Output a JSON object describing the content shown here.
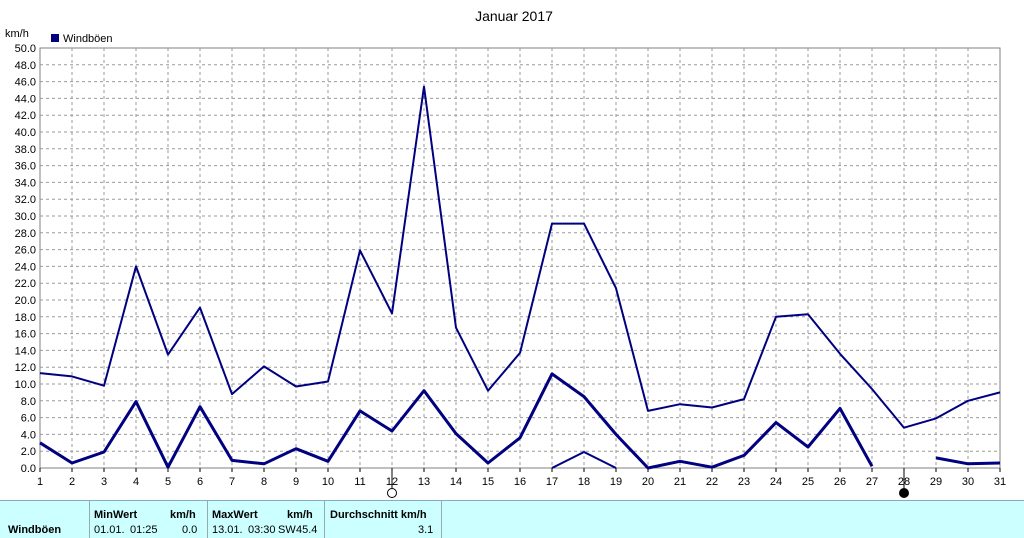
{
  "chart_data": {
    "type": "line",
    "title": "Januar 2017",
    "ylabel": "km/h",
    "legend": {
      "label": "Windböen",
      "placement": "top-left",
      "color": "#000080"
    },
    "ylim": [
      0,
      50
    ],
    "yticks": [
      "0.0",
      "2.0",
      "4.0",
      "6.0",
      "8.0",
      "10.0",
      "12.0",
      "14.0",
      "16.0",
      "18.0",
      "20.0",
      "22.0",
      "24.0",
      "26.0",
      "28.0",
      "30.0",
      "32.0",
      "34.0",
      "36.0",
      "38.0",
      "40.0",
      "42.0",
      "44.0",
      "46.0",
      "48.0",
      "50.0"
    ],
    "x": [
      1,
      2,
      3,
      4,
      5,
      6,
      7,
      8,
      9,
      10,
      11,
      12,
      13,
      14,
      15,
      16,
      17,
      18,
      19,
      20,
      21,
      22,
      23,
      24,
      25,
      26,
      27,
      28,
      29,
      30,
      31
    ],
    "grid": true,
    "series": [
      {
        "role": "max",
        "color": "#000080",
        "values": [
          11.3,
          10.9,
          9.8,
          24.0,
          13.5,
          19.1,
          8.8,
          12.1,
          9.7,
          10.3,
          25.9,
          18.4,
          45.4,
          16.7,
          9.2,
          13.7,
          29.1,
          29.1,
          21.4,
          6.8,
          7.6,
          7.2,
          8.2,
          18.0,
          18.3,
          13.6,
          9.4,
          4.8,
          5.9,
          8.0,
          9.0
        ]
      },
      {
        "role": "avg",
        "color": "#000080",
        "values": [
          3.0,
          0.6,
          1.9,
          7.9,
          0.1,
          7.3,
          0.9,
          0.5,
          2.3,
          0.8,
          6.8,
          4.4,
          9.2,
          4.1,
          0.6,
          3.6,
          11.2,
          8.5,
          4.0,
          0.0,
          0.8,
          0.1,
          1.5,
          5.4,
          2.5,
          7.1,
          0.2,
          null,
          1.2,
          0.5,
          0.6
        ]
      },
      {
        "role": "min",
        "color": "#000080",
        "values": [
          null,
          null,
          null,
          null,
          null,
          null,
          null,
          null,
          null,
          null,
          null,
          null,
          null,
          null,
          null,
          null,
          0.0,
          1.9,
          0.0,
          null,
          null,
          null,
          null,
          null,
          null,
          null,
          null,
          null,
          null,
          null,
          null
        ]
      }
    ],
    "markers": [
      {
        "day": 12,
        "symbol": "full-moon-icon"
      },
      {
        "day": 28,
        "symbol": "new-moon-icon"
      }
    ]
  },
  "stats": {
    "row_label": "Windböen",
    "min_header": "MinWert",
    "min_unit": "km/h",
    "min_date": "01.01.",
    "min_time": "01:25",
    "min_value": "0.0",
    "max_header": "MaxWert",
    "max_unit": "km/h",
    "max_date": "13.01.",
    "max_time": "03:30",
    "max_dir": "SW",
    "max_value": "45.4",
    "avg_header": "Durchschnitt km/h",
    "avg_value": "3.1"
  }
}
